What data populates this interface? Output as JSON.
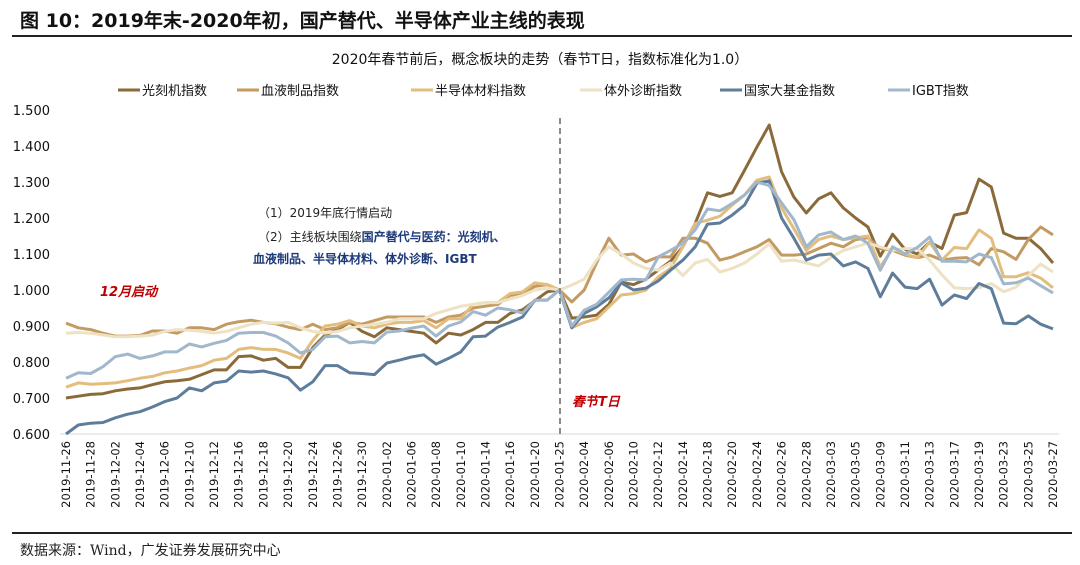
{
  "figure_title": "图 10：2019年末-2020年初，国产替代、半导体产业主线的表现",
  "source": "数据来源：Wind，广发证券发展研究中心",
  "chart_data": {
    "type": "line",
    "title": "2020年春节前后，概念板块的走势（春节T日，指数标准化为1.0）",
    "xlabel": "",
    "ylabel": "",
    "ylim": [
      0.6,
      1.5
    ],
    "y_ticks": [
      "1.500",
      "1.400",
      "1.300",
      "1.200",
      "1.100",
      "1.000",
      "0.900",
      "0.800",
      "0.700",
      "0.600"
    ],
    "grid": false,
    "legend_position": "top",
    "x_tick_labels": [
      "2019-11-26",
      "2019-11-28",
      "2019-12-02",
      "2019-12-04",
      "2019-12-06",
      "2019-12-10",
      "2019-12-12",
      "2019-12-16",
      "2019-12-18",
      "2019-12-20",
      "2019-12-24",
      "2019-12-26",
      "2019-12-30",
      "2020-01-02",
      "2020-01-06",
      "2020-01-08",
      "2020-01-10",
      "2020-01-14",
      "2020-01-16",
      "2020-01-20",
      "2020-01-25",
      "2020-02-04",
      "2020-02-06",
      "2020-02-10",
      "2020-02-12",
      "2020-02-14",
      "2020-02-18",
      "2020-02-20",
      "2020-02-24",
      "2020-02-26",
      "2020-02-28",
      "2020-03-03",
      "2020-03-05",
      "2020-03-09",
      "2020-03-11",
      "2020-03-13",
      "2020-03-17",
      "2020-03-19",
      "2020-03-23",
      "2020-03-25",
      "2020-03-27"
    ],
    "reference_line": {
      "x": "2020-01-25",
      "label": "春节T日",
      "style": "dashed"
    },
    "annotations": {
      "line1": "（1）2019年底行情启动",
      "line2_plain": "（2）主线板块围绕",
      "line2_bold": "国产替代与医药：光刻机、",
      "line3_bold": "血液制品、半导体材料、体外诊断、IGBT",
      "december": "12月启动"
    },
    "series": [
      {
        "name": "光刻机指数",
        "color": "#8B6A3A",
        "values": [
          0.7,
          0.705,
          0.71,
          0.712,
          0.72,
          0.725,
          0.728,
          0.737,
          0.745,
          0.748,
          0.752,
          0.765,
          0.778,
          0.778,
          0.815,
          0.817,
          0.805,
          0.81,
          0.785,
          0.785,
          0.84,
          0.875,
          0.89,
          0.91,
          0.885,
          0.87,
          0.895,
          0.89,
          0.885,
          0.88,
          0.853,
          0.88,
          0.875,
          0.89,
          0.91,
          0.91,
          0.935,
          0.945,
          0.97,
          0.995,
          1.0,
          0.922,
          0.925,
          0.93,
          0.96,
          1.022,
          1.015,
          1.03,
          1.055,
          1.08,
          1.12,
          1.185,
          1.27,
          1.26,
          1.27,
          1.333,
          1.397,
          1.458,
          1.328,
          1.258,
          1.214,
          1.253,
          1.27,
          1.228,
          1.2,
          1.175,
          1.094,
          1.155,
          1.113,
          1.1,
          1.133,
          1.115,
          1.208,
          1.215,
          1.308,
          1.286,
          1.158,
          1.144,
          1.144,
          1.115,
          1.075
        ]
      },
      {
        "name": "血液制品指数",
        "color": "#C39A62",
        "values": [
          0.908,
          0.895,
          0.89,
          0.88,
          0.872,
          0.872,
          0.874,
          0.886,
          0.886,
          0.88,
          0.895,
          0.895,
          0.89,
          0.905,
          0.912,
          0.916,
          0.91,
          0.906,
          0.897,
          0.89,
          0.905,
          0.89,
          0.895,
          0.91,
          0.905,
          0.915,
          0.925,
          0.925,
          0.925,
          0.925,
          0.91,
          0.925,
          0.93,
          0.95,
          0.955,
          0.96,
          0.985,
          0.99,
          1.01,
          1.015,
          1.0,
          0.967,
          1.0,
          1.075,
          1.144,
          1.097,
          1.1,
          1.078,
          1.092,
          1.092,
          1.144,
          1.144,
          1.13,
          1.083,
          1.092,
          1.106,
          1.12,
          1.14,
          1.097,
          1.097,
          1.1,
          1.115,
          1.13,
          1.12,
          1.14,
          1.145,
          1.115,
          1.11,
          1.097,
          1.09,
          1.097,
          1.083,
          1.088,
          1.09,
          1.07,
          1.115,
          1.106,
          1.085,
          1.14,
          1.175,
          1.153
        ]
      },
      {
        "name": "半导体材料指数",
        "color": "#E3BD7E",
        "values": [
          0.73,
          0.742,
          0.738,
          0.74,
          0.742,
          0.748,
          0.755,
          0.76,
          0.77,
          0.775,
          0.783,
          0.79,
          0.805,
          0.81,
          0.835,
          0.84,
          0.835,
          0.835,
          0.825,
          0.81,
          0.86,
          0.9,
          0.905,
          0.915,
          0.9,
          0.895,
          0.905,
          0.91,
          0.91,
          0.915,
          0.895,
          0.92,
          0.92,
          0.96,
          0.965,
          0.965,
          0.99,
          0.995,
          1.02,
          1.015,
          1.0,
          0.895,
          0.91,
          0.92,
          0.953,
          0.986,
          0.99,
          1.0,
          1.036,
          1.06,
          1.12,
          1.185,
          1.194,
          1.205,
          1.236,
          1.264,
          1.305,
          1.314,
          1.228,
          1.17,
          1.11,
          1.14,
          1.15,
          1.14,
          1.145,
          1.15,
          1.064,
          1.115,
          1.1,
          1.09,
          1.133,
          1.083,
          1.118,
          1.115,
          1.167,
          1.144,
          1.037,
          1.037,
          1.048,
          1.033,
          1.006
        ]
      },
      {
        "name": "体外诊断指数",
        "color": "#EEE2C4",
        "values": [
          0.88,
          0.882,
          0.88,
          0.875,
          0.87,
          0.87,
          0.872,
          0.875,
          0.885,
          0.89,
          0.888,
          0.885,
          0.88,
          0.885,
          0.895,
          0.905,
          0.91,
          0.908,
          0.91,
          0.895,
          0.885,
          0.88,
          0.885,
          0.895,
          0.9,
          0.905,
          0.91,
          0.92,
          0.92,
          0.92,
          0.935,
          0.945,
          0.955,
          0.96,
          0.965,
          0.965,
          0.975,
          0.985,
          1.0,
          1.005,
          1.0,
          1.014,
          1.03,
          1.083,
          1.12,
          1.1,
          1.075,
          1.06,
          1.055,
          1.075,
          1.04,
          1.075,
          1.085,
          1.05,
          1.06,
          1.075,
          1.1,
          1.128,
          1.08,
          1.083,
          1.075,
          1.067,
          1.09,
          1.11,
          1.12,
          1.13,
          1.12,
          1.11,
          1.115,
          1.115,
          1.083,
          1.042,
          1.006,
          1.004,
          1.006,
          1.018,
          0.995,
          1.008,
          1.04,
          1.072,
          1.05
        ]
      },
      {
        "name": "国家大基金指数",
        "color": "#5D7D9B",
        "values": [
          0.6,
          0.625,
          0.63,
          0.632,
          0.645,
          0.655,
          0.662,
          0.675,
          0.69,
          0.7,
          0.728,
          0.72,
          0.742,
          0.747,
          0.775,
          0.772,
          0.775,
          0.767,
          0.756,
          0.722,
          0.745,
          0.79,
          0.79,
          0.77,
          0.768,
          0.765,
          0.797,
          0.805,
          0.814,
          0.82,
          0.794,
          0.81,
          0.828,
          0.87,
          0.872,
          0.897,
          0.91,
          0.925,
          0.972,
          0.972,
          1.0,
          0.895,
          0.935,
          0.953,
          0.978,
          1.02,
          1.0,
          1.005,
          1.025,
          1.055,
          1.083,
          1.12,
          1.183,
          1.186,
          1.208,
          1.236,
          1.297,
          1.303,
          1.2,
          1.144,
          1.083,
          1.097,
          1.1,
          1.067,
          1.078,
          1.06,
          0.981,
          1.047,
          1.008,
          1.004,
          1.03,
          0.958,
          0.986,
          0.976,
          1.018,
          1.004,
          0.908,
          0.906,
          0.928,
          0.905,
          0.892
        ]
      },
      {
        "name": "IGBT指数",
        "color": "#A0B7CC",
        "values": [
          0.755,
          0.77,
          0.768,
          0.787,
          0.815,
          0.822,
          0.81,
          0.817,
          0.828,
          0.828,
          0.85,
          0.842,
          0.852,
          0.86,
          0.88,
          0.882,
          0.882,
          0.872,
          0.853,
          0.825,
          0.835,
          0.87,
          0.872,
          0.853,
          0.857,
          0.853,
          0.883,
          0.886,
          0.894,
          0.9,
          0.872,
          0.9,
          0.911,
          0.94,
          0.93,
          0.95,
          0.945,
          0.936,
          0.972,
          0.972,
          1.0,
          0.9,
          0.944,
          0.96,
          0.994,
          1.028,
          1.03,
          1.028,
          1.092,
          1.11,
          1.13,
          1.167,
          1.225,
          1.22,
          1.24,
          1.264,
          1.3,
          1.29,
          1.242,
          1.195,
          1.12,
          1.153,
          1.161,
          1.14,
          1.15,
          1.13,
          1.055,
          1.12,
          1.1,
          1.118,
          1.147,
          1.08,
          1.08,
          1.078,
          1.1,
          1.09,
          1.017,
          1.02,
          1.033,
          1.012,
          0.992
        ]
      }
    ]
  }
}
